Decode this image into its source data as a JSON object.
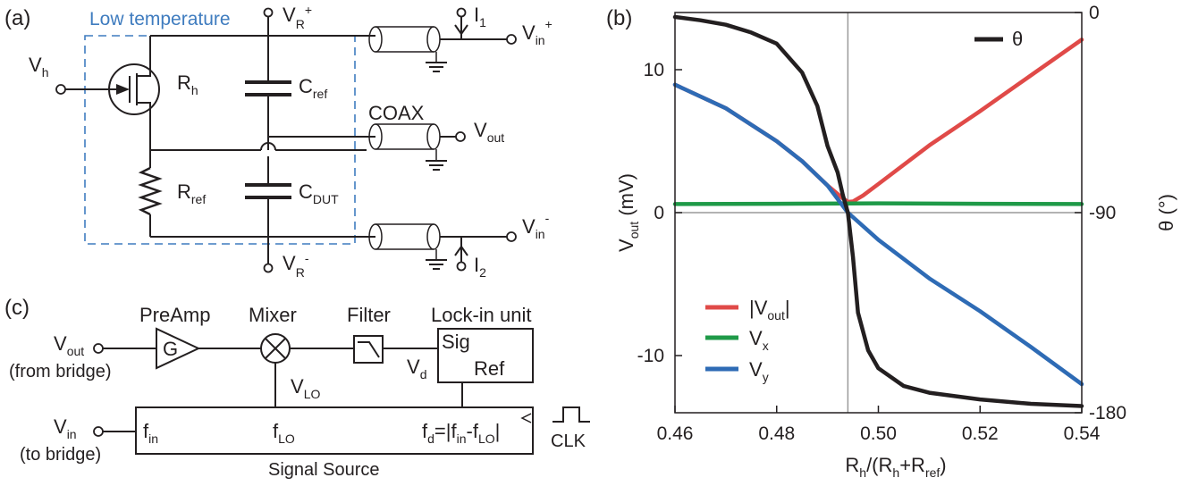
{
  "panel_labels": {
    "a": "(a)",
    "b": "(b)",
    "c": "(c)"
  },
  "circuit": {
    "region_label": "Low temperature",
    "vh": {
      "main": "V",
      "sub": "h"
    },
    "vr_plus": {
      "main": "V",
      "sub": "R",
      "sup": "+"
    },
    "vr_minus": {
      "main": "V",
      "sub": "R",
      "sup": "-"
    },
    "rh": {
      "main": "R",
      "sub": "h"
    },
    "rref": {
      "main": "R",
      "sub": "ref"
    },
    "cref": {
      "main": "C",
      "sub": "ref"
    },
    "cdut": {
      "main": "C",
      "sub": "DUT"
    },
    "coax": "COAX",
    "i1": {
      "main": "I",
      "sub": "1"
    },
    "i2": {
      "main": "I",
      "sub": "2"
    },
    "vin_plus": {
      "main": "V",
      "sub": "in",
      "sup": "+"
    },
    "vin_minus": {
      "main": "V",
      "sub": "in",
      "sup": "-"
    },
    "vout": {
      "main": "V",
      "sub": "out"
    }
  },
  "lockin": {
    "preamp": "PreAmp",
    "preamp_symbol": "G",
    "mixer": "Mixer",
    "filter": "Filter",
    "lockin_unit": "Lock-in unit",
    "sig": "Sig",
    "ref": "Ref",
    "vout_in": {
      "main": "V",
      "sub": "out"
    },
    "from_bridge": "(from bridge)",
    "vin_out": {
      "main": "V",
      "sub": "in"
    },
    "to_bridge": "(to bridge)",
    "vlo": {
      "main": "V",
      "sub": "LO"
    },
    "vd": {
      "main": "V",
      "sub": "d"
    },
    "fin": {
      "main": "f",
      "sub": "in"
    },
    "flo": {
      "main": "f",
      "sub": "LO"
    },
    "fd": {
      "p1": "f",
      "s1": "d",
      "p2": "=|f",
      "s2": "in",
      "p3": "-f",
      "s3": "LO",
      "p4": "|"
    },
    "signal_source": "Signal Source",
    "clk": "CLK"
  },
  "chart_data": {
    "type": "line",
    "x_label_parts": {
      "p1": "R",
      "s1": "h",
      "p2": "/(R",
      "s2": "h",
      "p3": "+R",
      "s3": "ref",
      "p4": ")"
    },
    "y_label_parts": {
      "p1": "V",
      "s1": "out",
      "p2": " (mV)"
    },
    "y2_label": "θ (°)",
    "xlim": [
      0.46,
      0.54
    ],
    "ylim": [
      -14,
      14
    ],
    "y2lim": [
      -180,
      0
    ],
    "x_ticks": [
      "0.46",
      "0.48",
      "0.50",
      "0.52",
      "0.54"
    ],
    "y_ticks": [
      "10",
      "0",
      "-10"
    ],
    "y2_ticks": [
      "0",
      "-90",
      "-180"
    ],
    "reference_lines": {
      "vertical_x": 0.494,
      "horizontal_y": 0
    },
    "legend_theta": "θ",
    "legend_main": [
      {
        "name_main": "|V",
        "name_sub": "out",
        "name_end": "|",
        "color": "#e04a48"
      },
      {
        "name_main": "V",
        "name_sub": "x",
        "name_end": "",
        "color": "#1f9a48"
      },
      {
        "name_main": "V",
        "name_sub": "y",
        "name_end": "",
        "color": "#2e6bb5"
      }
    ],
    "series": [
      {
        "name": "|Vout|",
        "axis": "left",
        "color": "#e04a48",
        "x": [
          0.46,
          0.47,
          0.48,
          0.485,
          0.49,
          0.493,
          0.494,
          0.495,
          0.497,
          0.5,
          0.51,
          0.52,
          0.53,
          0.54
        ],
        "y": [
          8.95,
          7.3,
          5.0,
          3.6,
          1.9,
          1.0,
          0.75,
          0.78,
          1.2,
          2.0,
          4.7,
          7.1,
          9.6,
          12.1
        ]
      },
      {
        "name": "Vx",
        "axis": "left",
        "color": "#1f9a48",
        "x": [
          0.46,
          0.48,
          0.5,
          0.52,
          0.54
        ],
        "y": [
          0.6,
          0.62,
          0.65,
          0.62,
          0.6
        ]
      },
      {
        "name": "Vy",
        "axis": "left",
        "color": "#2e6bb5",
        "x": [
          0.46,
          0.47,
          0.48,
          0.485,
          0.49,
          0.494,
          0.5,
          0.51,
          0.52,
          0.53,
          0.54
        ],
        "y": [
          8.95,
          7.3,
          5.0,
          3.6,
          1.9,
          0.0,
          -1.9,
          -4.6,
          -6.9,
          -9.4,
          -12.0
        ]
      },
      {
        "name": "θ",
        "axis": "right",
        "color": "#231f20",
        "x": [
          0.46,
          0.465,
          0.47,
          0.475,
          0.48,
          0.485,
          0.488,
          0.49,
          0.492,
          0.493,
          0.494,
          0.495,
          0.496,
          0.498,
          0.5,
          0.505,
          0.51,
          0.52,
          0.53,
          0.54
        ],
        "y": [
          -2,
          -3.5,
          -5.5,
          -9,
          -14,
          -27,
          -42,
          -60,
          -72,
          -82,
          -90,
          -110,
          -135,
          -152,
          -160,
          -168,
          -171,
          -174,
          -176,
          -177
        ]
      }
    ]
  }
}
